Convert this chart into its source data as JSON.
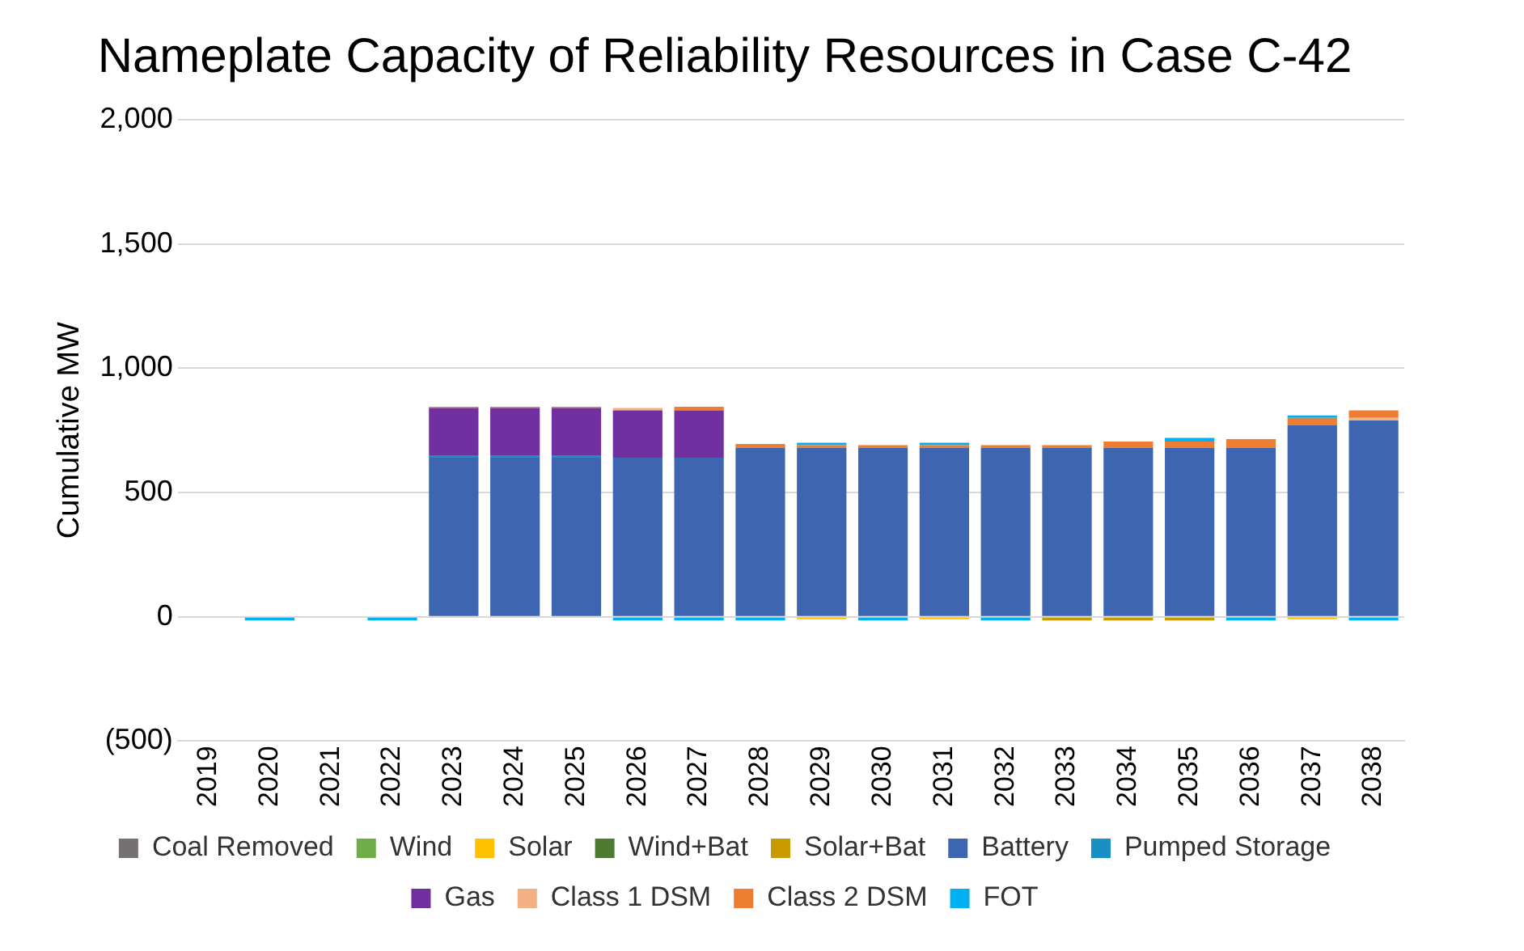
{
  "chart_data": {
    "type": "bar",
    "title": "Nameplate Capacity of Reliability Resources in Case C-42",
    "ylabel": "Cumulative MW",
    "stacked": true,
    "grid": "y",
    "legend": "bottom",
    "categories": [
      "2019",
      "2020",
      "2021",
      "2022",
      "2023",
      "2024",
      "2025",
      "2026",
      "2027",
      "2028",
      "2029",
      "2030",
      "2031",
      "2032",
      "2033",
      "2034",
      "2035",
      "2036",
      "2037",
      "2038"
    ],
    "ylim": [
      -500,
      2000
    ],
    "yticks": [
      {
        "value": -500,
        "label": "(500)"
      },
      0,
      {
        "value": 500,
        "label": "500"
      },
      {
        "value": 1000,
        "label": "1,000"
      },
      {
        "value": 1500,
        "label": "1,500"
      },
      {
        "value": 2000,
        "label": "2,000"
      }
    ],
    "series": [
      {
        "name": "Coal Removed",
        "color": "#767171",
        "values": [
          null,
          null,
          null,
          null,
          null,
          null,
          null,
          null,
          null,
          null,
          null,
          null,
          null,
          null,
          null,
          null,
          null,
          null,
          null,
          null
        ]
      },
      {
        "name": "Wind",
        "color": "#70ad47",
        "values": [
          null,
          null,
          null,
          null,
          null,
          null,
          null,
          null,
          null,
          null,
          null,
          null,
          null,
          null,
          null,
          null,
          null,
          null,
          null,
          null
        ]
      },
      {
        "name": "Solar",
        "color": "#ffc000",
        "values": [
          null,
          null,
          null,
          null,
          null,
          null,
          null,
          null,
          null,
          null,
          -10,
          null,
          -10,
          null,
          null,
          null,
          null,
          null,
          -10,
          null
        ]
      },
      {
        "name": "Wind+Bat",
        "color": "#4e7a32",
        "values": [
          null,
          null,
          null,
          null,
          null,
          null,
          null,
          null,
          null,
          null,
          null,
          null,
          null,
          null,
          null,
          null,
          null,
          null,
          null,
          null
        ]
      },
      {
        "name": "Solar+Bat",
        "color": "#c99a00",
        "values": [
          null,
          null,
          null,
          null,
          null,
          null,
          null,
          null,
          null,
          null,
          null,
          null,
          null,
          null,
          -15,
          -15,
          -15,
          null,
          null,
          null
        ]
      },
      {
        "name": "Battery",
        "color": "#3d65b0",
        "values": [
          null,
          null,
          null,
          null,
          640,
          640,
          640,
          640,
          640,
          680,
          680,
          680,
          680,
          680,
          680,
          680,
          680,
          680,
          770,
          790
        ]
      },
      {
        "name": "Pumped Storage",
        "color": "#1a8fc4",
        "values": [
          null,
          null,
          null,
          null,
          10,
          10,
          10,
          null,
          null,
          null,
          null,
          null,
          null,
          null,
          null,
          null,
          null,
          null,
          null,
          null
        ]
      },
      {
        "name": "Gas",
        "color": "#7030a0",
        "values": [
          null,
          null,
          null,
          null,
          190,
          190,
          190,
          190,
          190,
          null,
          null,
          null,
          null,
          null,
          null,
          null,
          null,
          null,
          null,
          null
        ]
      },
      {
        "name": "Class 1 DSM",
        "color": "#f4b183",
        "values": [
          null,
          null,
          null,
          null,
          null,
          null,
          null,
          10,
          null,
          null,
          null,
          null,
          null,
          null,
          null,
          null,
          null,
          null,
          null,
          10
        ]
      },
      {
        "name": "Class 2 DSM",
        "color": "#ed7d31",
        "values": [
          null,
          null,
          null,
          null,
          5,
          5,
          5,
          null,
          15,
          15,
          10,
          10,
          10,
          10,
          10,
          25,
          25,
          35,
          30,
          30
        ]
      },
      {
        "name": "FOT",
        "color": "#00b0f0",
        "values": [
          null,
          -15,
          null,
          -15,
          null,
          null,
          null,
          -15,
          -15,
          -15,
          10,
          -15,
          10,
          -15,
          null,
          null,
          15,
          -15,
          10,
          -15
        ]
      }
    ]
  }
}
